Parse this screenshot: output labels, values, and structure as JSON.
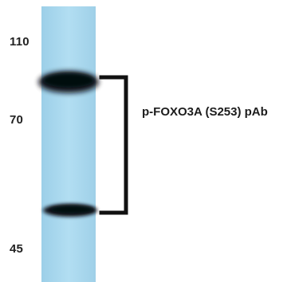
{
  "markers": {
    "m110": "110",
    "m70": "70",
    "m45": "45"
  },
  "antibody_label": "p-FOXO3A (S253) pAb",
  "colors": {
    "membrane": "#a9d8ee",
    "band": "#0b0f14",
    "bracket": "#111111"
  }
}
